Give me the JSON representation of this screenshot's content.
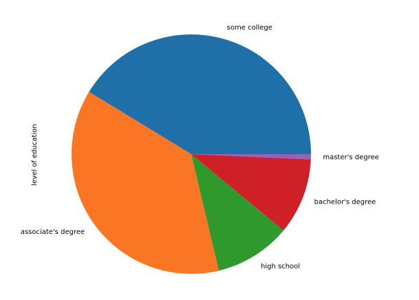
{
  "chart_data": {
    "type": "pie",
    "ylabel": "level of education",
    "start_angle_deg": 0,
    "direction": "counterclockwise",
    "slices": [
      {
        "label": "some college",
        "value": 41.3,
        "color": "#1f6fa8"
      },
      {
        "label": "associate's degree",
        "value": 37.4,
        "color": "#fa7524"
      },
      {
        "label": "high school",
        "value": 10.3,
        "color": "#2f992e"
      },
      {
        "label": "bachelor's degree",
        "value": 10.3,
        "color": "#d02027"
      },
      {
        "label": "master's degree",
        "value": 0.7,
        "color": "#9663ba"
      }
    ]
  }
}
